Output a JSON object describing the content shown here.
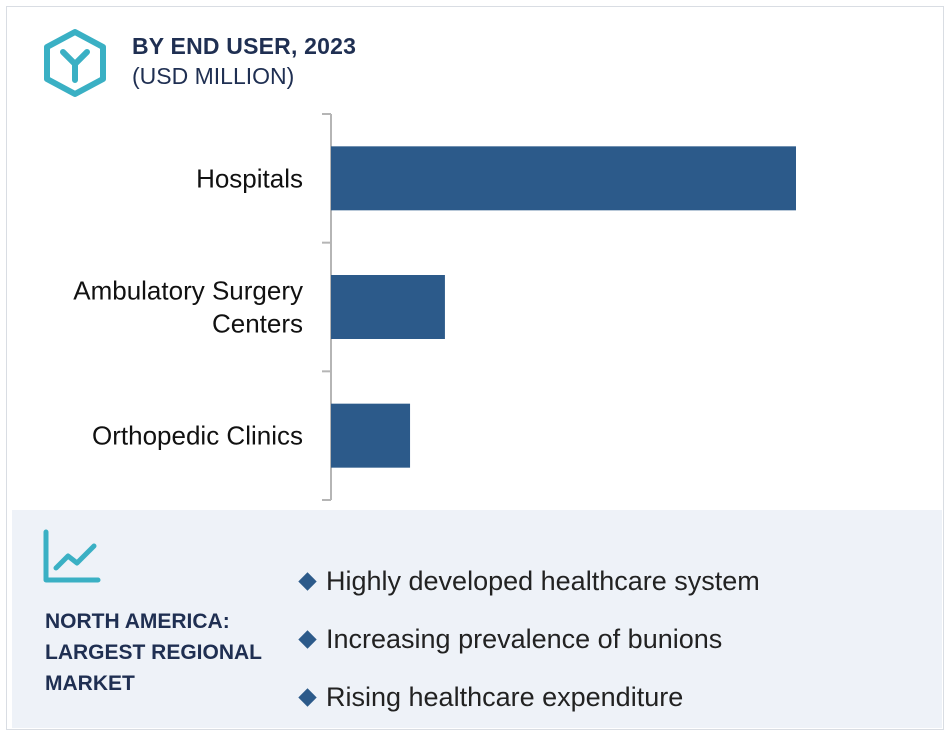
{
  "header": {
    "title": "BY END USER, 2023",
    "subtitle": "(USD MILLION)",
    "logo_icon": "hexagon-y-logo-icon"
  },
  "colors": {
    "bar": "#2c5a8a",
    "accent": "#3ab0c4",
    "title": "#1f2f52",
    "panel_bg": "#eef2f8"
  },
  "chart_data": {
    "type": "bar",
    "orientation": "horizontal",
    "categories": [
      [
        "Hospitals"
      ],
      [
        "Ambulatory Surgery",
        "Centers"
      ],
      [
        "Orthopedic Clinics"
      ]
    ],
    "values": [
      100,
      24.5,
      17
    ],
    "title": "BY END USER, 2023",
    "xlabel": "",
    "ylabel": "",
    "xlim": [
      0,
      100
    ],
    "grid": false,
    "legend": "none"
  },
  "panel": {
    "icon": "line-chart-icon",
    "region_lines": [
      "NORTH AMERICA:",
      "LARGEST REGIONAL",
      "MARKET"
    ],
    "bullets": [
      "Highly developed healthcare system",
      "Increasing prevalence of bunions",
      "Rising healthcare expenditure"
    ]
  }
}
